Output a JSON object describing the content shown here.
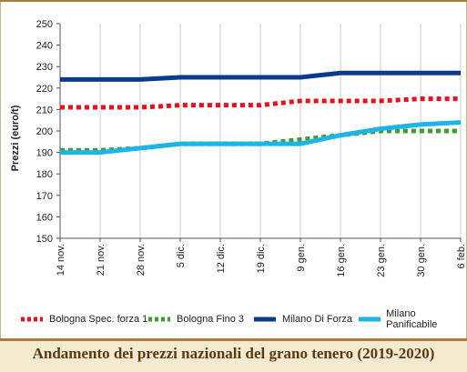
{
  "chart_data": {
    "type": "line",
    "title": "Andamento dei prezzi nazionali del grano tenero (2019-2020)",
    "ylabel": "Prezzi (euro/t)",
    "xlabel": "",
    "ylim": [
      150,
      250
    ],
    "yticks": [
      150,
      160,
      170,
      180,
      190,
      200,
      210,
      220,
      230,
      240,
      250
    ],
    "grid": "vertical",
    "legend_position": "bottom",
    "categories": [
      "14 nov.",
      "21 nov.",
      "28 nov.",
      "5 dic.",
      "12 dic.",
      "19 dic.",
      "9 gen.",
      "16 gen.",
      "23 gen.",
      "30 gen.",
      "6 feb."
    ],
    "series": [
      {
        "name": "Bologna Spec. forza 1",
        "color": "#e8101c",
        "style": "dotted",
        "values": [
          211,
          211,
          211,
          212,
          212,
          212,
          214,
          214,
          214,
          215,
          215
        ]
      },
      {
        "name": "Bologna Fino 3",
        "color": "#3aa02a",
        "style": "dotted",
        "values": [
          191,
          191,
          192,
          194,
          194,
          194,
          196,
          198,
          200,
          200,
          200
        ]
      },
      {
        "name": "Milano Di Forza",
        "color": "#0b3a8c",
        "style": "solid",
        "values": [
          224,
          224,
          224,
          225,
          225,
          225,
          225,
          227,
          227,
          227,
          227
        ]
      },
      {
        "name": "Milano Panificabile",
        "color": "#1fb4e6",
        "style": "solid",
        "values": [
          190,
          190,
          192,
          194,
          194,
          194,
          194,
          198,
          201,
          203,
          204
        ]
      }
    ]
  }
}
